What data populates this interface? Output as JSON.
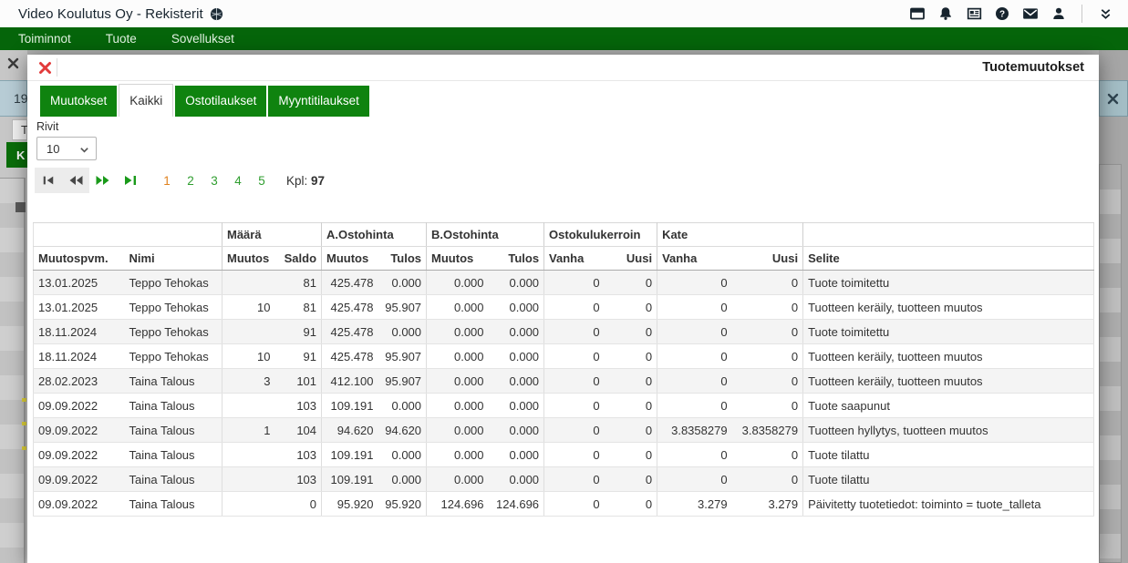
{
  "window": {
    "title": "Video Koulutus Oy - Rekisterit"
  },
  "topbar": {
    "icons": [
      "window-icon",
      "bell-icon",
      "newspaper-icon",
      "help-icon",
      "mail-icon",
      "user-icon"
    ],
    "collapse_icon": "double-chevron-down-icon"
  },
  "menubar": {
    "items": [
      "Toiminnot",
      "Tuote",
      "Sovellukset"
    ]
  },
  "background_window": {
    "close_icon": "close-icon",
    "badge": "19",
    "tab_fragment": "T",
    "button_fragment": "K",
    "panel_close_icon": "close-icon"
  },
  "modal": {
    "title": "Tuotemuutokset",
    "close_icon": "red-close-icon",
    "tabs": [
      {
        "label": "Muutokset",
        "active": false
      },
      {
        "label": "Kaikki",
        "active": true
      },
      {
        "label": "Ostotilaukset",
        "active": false
      },
      {
        "label": "Myyntitilaukset",
        "active": false
      }
    ],
    "rows_label": "Rivit",
    "rows_per_page": "10",
    "pager": {
      "first_icon": "first-page-icon",
      "prev_icon": "prev-page-icon",
      "next_icon": "next-page-icon",
      "last_icon": "last-page-icon",
      "pages": [
        "1",
        "2",
        "3",
        "4",
        "5"
      ],
      "current_page": "1",
      "count_label": "Kpl:",
      "count": "97"
    },
    "table": {
      "group_headers": [
        {
          "label": "",
          "span": 2
        },
        {
          "label": "Määrä",
          "span": 2
        },
        {
          "label": "A.Ostohinta",
          "span": 2
        },
        {
          "label": "B.Ostohinta",
          "span": 2
        },
        {
          "label": "Ostokulukerroin",
          "span": 2
        },
        {
          "label": "Kate",
          "span": 2
        },
        {
          "label": "",
          "span": 1
        }
      ],
      "columns": [
        "Muutospvm.",
        "Nimi",
        "Muutos",
        "Saldo",
        "Muutos",
        "Tulos",
        "Muutos",
        "Tulos",
        "Vanha",
        "Uusi",
        "Vanha",
        "Uusi",
        "Selite"
      ],
      "rows": [
        [
          "13.01.2025",
          "Teppo Tehokas",
          "",
          "81",
          "425.478",
          "0.000",
          "0.000",
          "0.000",
          "0",
          "0",
          "0",
          "0",
          "Tuote toimitettu"
        ],
        [
          "13.01.2025",
          "Teppo Tehokas",
          "10",
          "81",
          "425.478",
          "95.907",
          "0.000",
          "0.000",
          "0",
          "0",
          "0",
          "0",
          "Tuotteen keräily, tuotteen muutos"
        ],
        [
          "18.11.2024",
          "Teppo Tehokas",
          "",
          "91",
          "425.478",
          "0.000",
          "0.000",
          "0.000",
          "0",
          "0",
          "0",
          "0",
          "Tuote toimitettu"
        ],
        [
          "18.11.2024",
          "Teppo Tehokas",
          "10",
          "91",
          "425.478",
          "95.907",
          "0.000",
          "0.000",
          "0",
          "0",
          "0",
          "0",
          "Tuotteen keräily, tuotteen muutos"
        ],
        [
          "28.02.2023",
          "Taina Talous",
          "3",
          "101",
          "412.100",
          "95.907",
          "0.000",
          "0.000",
          "0",
          "0",
          "0",
          "0",
          "Tuotteen keräily, tuotteen muutos"
        ],
        [
          "09.09.2022",
          "Taina Talous",
          "",
          "103",
          "109.191",
          "0.000",
          "0.000",
          "0.000",
          "0",
          "0",
          "0",
          "0",
          "Tuote saapunut"
        ],
        [
          "09.09.2022",
          "Taina Talous",
          "1",
          "104",
          "94.620",
          "94.620",
          "0.000",
          "0.000",
          "0",
          "0",
          "3.8358279",
          "3.8358279",
          "Tuotteen hyllytys, tuotteen muutos"
        ],
        [
          "09.09.2022",
          "Taina Talous",
          "",
          "103",
          "109.191",
          "0.000",
          "0.000",
          "0.000",
          "0",
          "0",
          "0",
          "0",
          "Tuote tilattu"
        ],
        [
          "09.09.2022",
          "Taina Talous",
          "",
          "103",
          "109.191",
          "0.000",
          "0.000",
          "0.000",
          "0",
          "0",
          "0",
          "0",
          "Tuote tilattu"
        ],
        [
          "09.09.2022",
          "Taina Talous",
          "",
          "0",
          "95.920",
          "95.920",
          "124.696",
          "124.696",
          "0",
          "0",
          "3.279",
          "3.279",
          "Päivitetty tuotetiedot: toiminto = tuote_talleta"
        ]
      ]
    }
  },
  "colors": {
    "menubar_green": "#05650a",
    "tab_green": "#0f830f",
    "page_link_green": "#2f9e2f",
    "current_page_orange": "#e0821e",
    "close_red": "#e23b3b",
    "row_alt": "#f4f4f4"
  }
}
